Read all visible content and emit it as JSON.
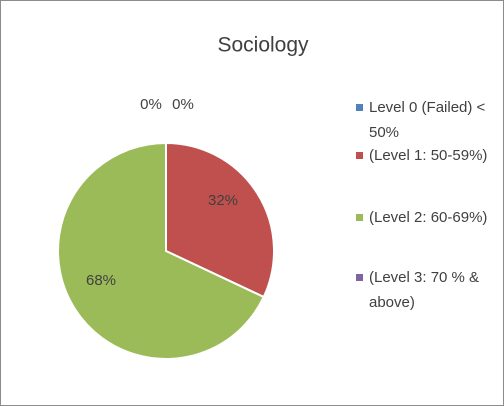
{
  "chart_data": {
    "type": "pie",
    "title": "Sociology",
    "categories": [
      "Level 0 (Failed) < 50%",
      "(Level 1: 50-59%)",
      "(Level 2: 60-69%)",
      "(Level 3: 70 % & above)"
    ],
    "values": [
      0,
      32,
      68,
      0
    ],
    "value_labels": [
      "0%",
      "32%",
      "68%",
      "0%"
    ],
    "colors": [
      "#4f81bd",
      "#c0504d",
      "#9bbb59",
      "#8064a2"
    ],
    "legend": "right"
  }
}
